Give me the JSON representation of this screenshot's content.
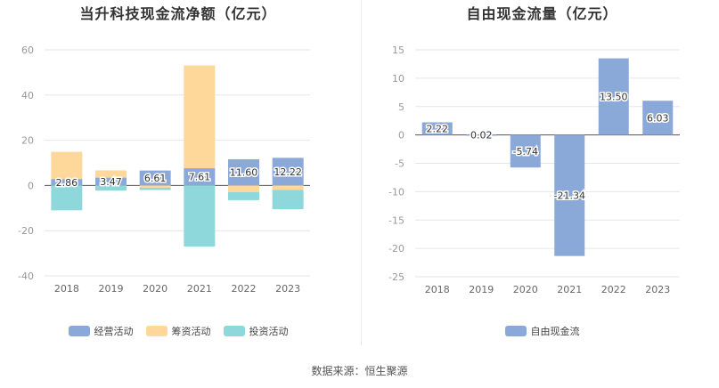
{
  "source": "数据来源：恒生聚源",
  "colors": {
    "operating": "#8aa9d9",
    "financing": "#fdd89a",
    "investing": "#8ed8db",
    "fcf": "#8aa9d9",
    "grid": "#e6e6e6",
    "axis": "#999999"
  },
  "chart_data": [
    {
      "type": "bar",
      "title": "当升科技现金流净额（亿元）",
      "stacked": true,
      "categories": [
        "2018",
        "2019",
        "2020",
        "2021",
        "2022",
        "2023"
      ],
      "ylim": [
        -40,
        60
      ],
      "yticks": [
        -40,
        -20,
        0,
        20,
        40,
        60
      ],
      "grid": true,
      "legend_position": "bottom",
      "series": [
        {
          "name": "经营活动",
          "color_key": "operating",
          "values": [
            2.86,
            3.47,
            6.61,
            7.61,
            11.6,
            12.22
          ],
          "labels": [
            "2.86",
            "3.47",
            "6.61",
            "7.61",
            "11.60",
            "12.22"
          ]
        },
        {
          "name": "筹资活动",
          "color_key": "financing",
          "values": [
            12,
            3.2,
            -1,
            45.5,
            -3,
            -2
          ]
        },
        {
          "name": "投资活动",
          "color_key": "investing",
          "values": [
            -11,
            -2.3,
            -1,
            -27,
            -3.5,
            -8.5
          ]
        }
      ]
    },
    {
      "type": "bar",
      "title": "自由现金流量（亿元）",
      "categories": [
        "2018",
        "2019",
        "2020",
        "2021",
        "2022",
        "2023"
      ],
      "ylim": [
        -25,
        15
      ],
      "yticks": [
        -25,
        -20,
        -15,
        -10,
        -5,
        0,
        5,
        10,
        15
      ],
      "grid": true,
      "legend_position": "bottom",
      "series": [
        {
          "name": "自由现金流",
          "color_key": "fcf",
          "values": [
            2.22,
            0.02,
            -5.74,
            -21.34,
            13.5,
            6.03
          ],
          "labels": [
            "2.22",
            "0.02",
            "-5.74",
            "-21.34",
            "13.50",
            "6.03"
          ]
        }
      ]
    }
  ]
}
